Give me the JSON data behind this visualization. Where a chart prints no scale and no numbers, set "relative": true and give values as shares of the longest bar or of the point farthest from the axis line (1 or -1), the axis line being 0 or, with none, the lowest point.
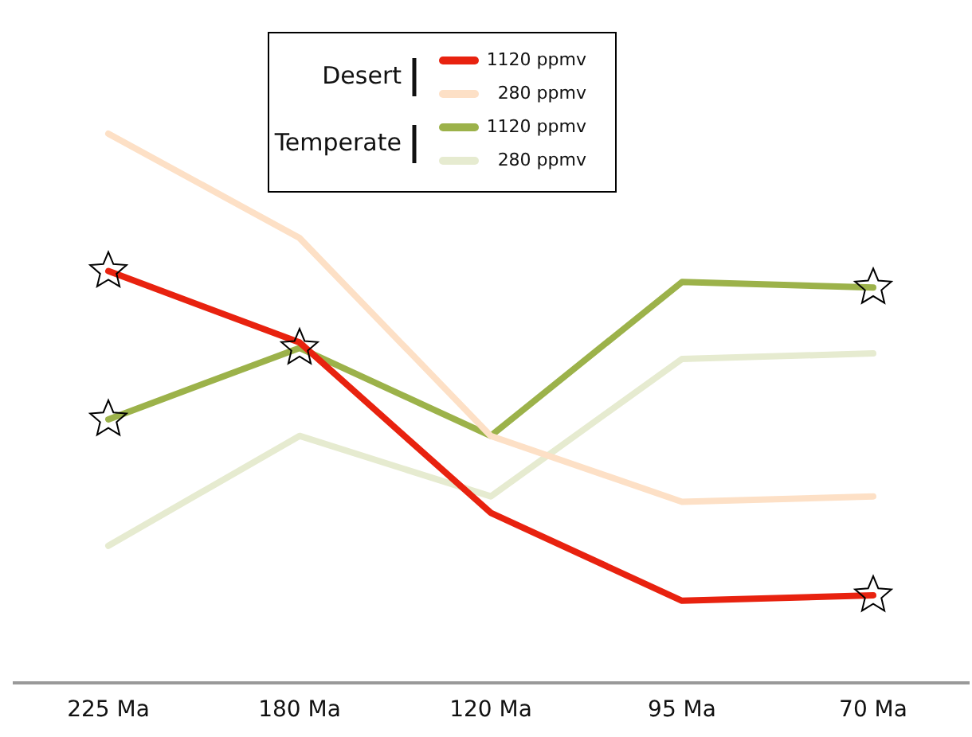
{
  "chart_data": {
    "type": "line",
    "relative": true,
    "categories": [
      "225 Ma",
      "180 Ma",
      "120 Ma",
      "95 Ma",
      "70 Ma"
    ],
    "legend": "top",
    "grid": false,
    "line_style": "solid",
    "marker": "none",
    "annotations": [
      "Desert",
      "Temperate"
    ],
    "series": [
      {
        "name": "1120 ppmv",
        "color": "#e8220f",
        "values": [
          0.75,
          0.62,
          0.31,
          0.15,
          0.16
        ]
      },
      {
        "name": "280 ppmv",
        "color": "#fde0c6",
        "values": [
          1.0,
          0.81,
          0.45,
          0.33,
          0.34
        ]
      },
      {
        "name": "1120 ppmv",
        "color": "#9cb24a",
        "values": [
          0.48,
          0.61,
          0.45,
          0.73,
          0.72
        ]
      },
      {
        "name": "280 ppmv",
        "color": "#e6ebd0",
        "values": [
          0.25,
          0.45,
          0.34,
          0.59,
          0.6
        ]
      },
      {
        "type": "scatter",
        "marker": "star",
        "color": "#000000",
        "x": [
          "225 Ma",
          "225 Ma",
          "180 Ma",
          "70 Ma",
          "70 Ma"
        ],
        "values": [
          0.75,
          0.48,
          0.61,
          0.72,
          0.16
        ]
      }
    ]
  }
}
